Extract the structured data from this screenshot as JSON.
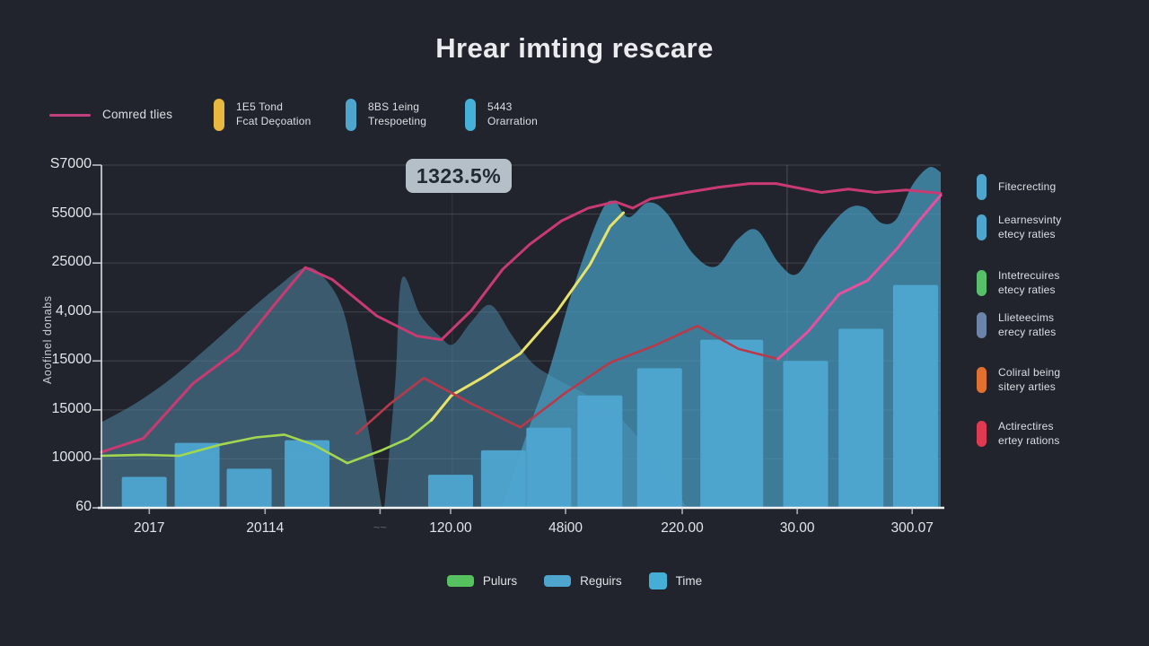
{
  "title": "Hrear imting rescare",
  "badge": {
    "value": "1323.5%"
  },
  "top_legend": [
    {
      "label_lines": [
        "Comred tlies"
      ],
      "swatch": "line",
      "color": "#c2407e"
    },
    {
      "label_lines": [
        "1E5 Tond",
        "Fcat Deçoation"
      ],
      "swatch": "pill",
      "color": "#e8b93f"
    },
    {
      "label_lines": [
        "8BS 1eing",
        "Trespoeting"
      ],
      "swatch": "pill",
      "color": "#4ea6cf"
    },
    {
      "label_lines": [
        "5443",
        "Orarration"
      ],
      "swatch": "pill",
      "color": "#45b1d8"
    }
  ],
  "right_legend": [
    {
      "label_lines": [
        "Fitecrecting"
      ],
      "color": "#4ea6cf"
    },
    {
      "label_lines": [
        "Learnesvinty",
        "etecy raties"
      ],
      "color": "#4ea6cf"
    },
    {
      "label_lines": [
        "Intetrecuires",
        "etecy raties"
      ],
      "color": "#56c06a"
    },
    {
      "label_lines": [
        "Llieteecims",
        "erecy ratles"
      ],
      "color": "#6c84a8"
    },
    {
      "label_lines": [
        "Coliral being",
        "sitery arties"
      ],
      "color": "#e2712f"
    },
    {
      "label_lines": [
        "Actirectires",
        "ertey rations"
      ],
      "color": "#e03a52"
    }
  ],
  "bottom_legend": [
    {
      "label": "Pulurs",
      "color": "#55c15f",
      "shape": "pill"
    },
    {
      "label": "Reguirs",
      "color": "#4ea6cf",
      "shape": "pill"
    },
    {
      "label": "Time",
      "color": "#45aed6",
      "shape": "square"
    }
  ],
  "chart_data": {
    "type": "composite (area + bar + line)",
    "title": "Hrear imting rescare",
    "ylabel": "Aoofinel donabs",
    "ylim": [
      0,
      57000
    ],
    "grid": true,
    "background": "#21242c",
    "badge_annotation": "1323.5%",
    "y_tick_labels": [
      "S7000",
      "55000",
      "25000",
      "4,000",
      "15000",
      "15000",
      "10000",
      "60"
    ],
    "x_tick_labels": [
      "2017",
      "20114",
      "~~",
      "120.00",
      "48i00",
      "220.00",
      "30.00",
      "300.07"
    ],
    "series": {
      "bars": {
        "name": "bars",
        "color": "#4ea6cf",
        "points": [
          {
            "x": 0.051,
            "v": 5050
          },
          {
            "x": 0.114,
            "v": 10600
          },
          {
            "x": 0.176,
            "v": 6400
          },
          {
            "x": 0.245,
            "v": 11050
          },
          {
            "x": 0.416,
            "v": 5400
          },
          {
            "x": 0.479,
            "v": 9400
          },
          {
            "x": 0.533,
            "v": 13100
          },
          {
            "x": 0.594,
            "v": 18350
          },
          {
            "x": 0.665,
            "v": 22800
          },
          {
            "x": 0.751,
            "v": 27450,
            "w": 70
          },
          {
            "x": 0.839,
            "v": 24000
          },
          {
            "x": 0.905,
            "v": 29250
          },
          {
            "x": 0.97,
            "v": 36400
          }
        ]
      },
      "areas": [
        {
          "name": "area-left-ridge",
          "color": "#4f7f9b",
          "opacity": 0.6,
          "points": [
            [
              0,
              14000
            ],
            [
              0.04,
              17000
            ],
            [
              0.082,
              21000
            ],
            [
              0.125,
              26000
            ],
            [
              0.17,
              31500
            ],
            [
              0.209,
              36000
            ],
            [
              0.243,
              39250
            ],
            [
              0.266,
              37450
            ],
            [
              0.288,
              32230
            ],
            [
              0.305,
              21800
            ],
            [
              0.32,
              11350
            ],
            [
              0.334,
              0
            ]
          ]
        },
        {
          "name": "area-mid-ridge",
          "color": "#4e8aa8",
          "opacity": 0.52,
          "points": [
            [
              0.337,
              0
            ],
            [
              0.35,
              20300
            ],
            [
              0.358,
              37450
            ],
            [
              0.38,
              31500
            ],
            [
              0.403,
              28050
            ],
            [
              0.419,
              26700
            ],
            [
              0.441,
              30450
            ],
            [
              0.464,
              33100
            ],
            [
              0.489,
              28200
            ],
            [
              0.513,
              23700
            ],
            [
              0.542,
              21050
            ],
            [
              0.574,
              18800
            ],
            [
              0.612,
              15500
            ],
            [
              0.649,
              9850
            ],
            [
              0.681,
              3900
            ],
            [
              0.697,
              0
            ]
          ]
        },
        {
          "name": "area-right-ridge",
          "color": "#4799bd",
          "opacity": 0.75,
          "points": [
            [
              0.478,
              0
            ],
            [
              0.505,
              11350
            ],
            [
              0.532,
              21800
            ],
            [
              0.564,
              36700
            ],
            [
              0.594,
              47900
            ],
            [
              0.61,
              50150
            ],
            [
              0.628,
              47450
            ],
            [
              0.651,
              49850
            ],
            [
              0.673,
              48200
            ],
            [
              0.705,
              41500
            ],
            [
              0.732,
              39400
            ],
            [
              0.758,
              43850
            ],
            [
              0.781,
              45350
            ],
            [
              0.807,
              40000
            ],
            [
              0.829,
              38200
            ],
            [
              0.856,
              43850
            ],
            [
              0.887,
              48650
            ],
            [
              0.909,
              49100
            ],
            [
              0.929,
              46550
            ],
            [
              0.947,
              47150
            ],
            [
              0.966,
              52650
            ],
            [
              0.986,
              55600
            ],
            [
              1,
              54800
            ]
          ]
        }
      ],
      "lines": [
        {
          "name": "green-baseline-line",
          "color": "#a2d74f",
          "width": 2.6,
          "points": [
            [
              0,
              8500
            ],
            [
              0.05,
              8650
            ],
            [
              0.093,
              8500
            ],
            [
              0.141,
              10300
            ],
            [
              0.184,
              11500
            ],
            [
              0.218,
              11950
            ],
            [
              0.253,
              10300
            ],
            [
              0.293,
              7300
            ],
            [
              0.334,
              9400
            ],
            [
              0.366,
              11350
            ],
            [
              0.393,
              14300
            ]
          ]
        },
        {
          "name": "yellow-climb-line",
          "color": "#e9e26a",
          "width": 3,
          "points": [
            [
              0.393,
              14300
            ],
            [
              0.417,
              18350
            ],
            [
              0.457,
              21500
            ],
            [
              0.499,
              25200
            ],
            [
              0.542,
              31950
            ],
            [
              0.582,
              39700
            ],
            [
              0.606,
              45950
            ],
            [
              0.622,
              48200
            ]
          ]
        },
        {
          "name": "crimson-zigzag-line",
          "color": "#b8394a",
          "width": 2.6,
          "points": [
            [
              0.304,
              12100
            ],
            [
              0.344,
              17000
            ],
            [
              0.384,
              21200
            ],
            [
              0.441,
              17000
            ],
            [
              0.499,
              13150
            ],
            [
              0.553,
              18800
            ],
            [
              0.606,
              23700
            ],
            [
              0.66,
              26550
            ],
            [
              0.71,
              29700
            ],
            [
              0.759,
              25950
            ],
            [
              0.806,
              24300
            ]
          ]
        },
        {
          "name": "magenta-trend-line",
          "color": "#c93a72",
          "width": 3,
          "points": [
            [
              0,
              9100
            ],
            [
              0.05,
              11350
            ],
            [
              0.109,
              20300
            ],
            [
              0.163,
              25800
            ],
            [
              0.205,
              33000
            ],
            [
              0.243,
              39250
            ],
            [
              0.275,
              37300
            ],
            [
              0.328,
              31350
            ],
            [
              0.376,
              28050
            ],
            [
              0.405,
              27450
            ],
            [
              0.441,
              32250
            ],
            [
              0.478,
              38950
            ],
            [
              0.51,
              43000
            ],
            [
              0.548,
              46850
            ],
            [
              0.58,
              48950
            ],
            [
              0.612,
              50000
            ],
            [
              0.633,
              48950
            ],
            [
              0.654,
              50450
            ],
            [
              0.697,
              51500
            ],
            [
              0.735,
              52350
            ],
            [
              0.772,
              52950
            ],
            [
              0.804,
              52950
            ],
            [
              0.826,
              52350
            ],
            [
              0.858,
              51500
            ],
            [
              0.89,
              52050
            ],
            [
              0.922,
              51500
            ],
            [
              0.959,
              51900
            ],
            [
              1,
              51350
            ]
          ]
        },
        {
          "name": "pink-rising-line",
          "color": "#e84f9e",
          "width": 3,
          "points": [
            [
              0.806,
              24300
            ],
            [
              0.842,
              28800
            ],
            [
              0.879,
              34900
            ],
            [
              0.913,
              37150
            ],
            [
              0.949,
              42500
            ],
            [
              0.974,
              46850
            ],
            [
              1,
              51050
            ]
          ]
        }
      ]
    }
  }
}
